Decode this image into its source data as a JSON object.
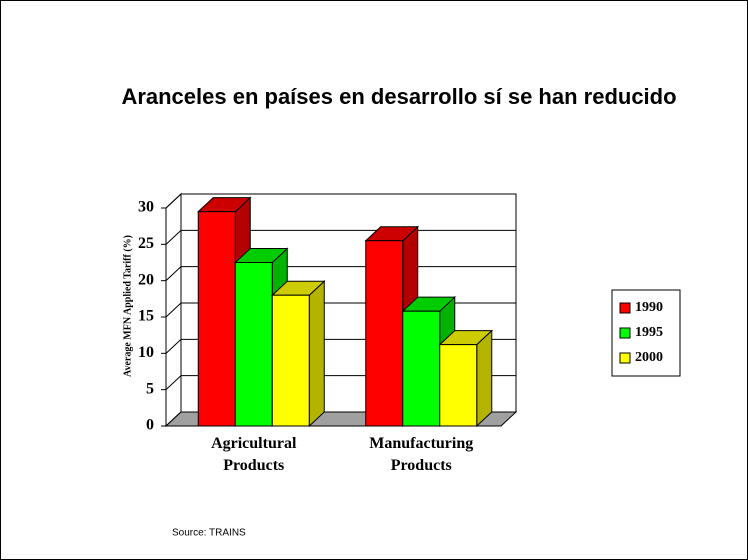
{
  "chart_data": {
    "type": "bar3d",
    "title": "Aranceles en países en desarrollo sí se han reducido",
    "y_label": "Average MFN Applied Tariff (%)",
    "categories": [
      "Agricultural Products",
      "Manufacturing Products"
    ],
    "series": [
      {
        "name": "1990",
        "color": "#ff0000",
        "values": [
          29.5,
          25.5
        ]
      },
      {
        "name": "1995",
        "color": "#00ff00",
        "values": [
          22.5,
          15.8
        ]
      },
      {
        "name": "2000",
        "color": "#ffff00",
        "values": [
          18,
          11.2
        ]
      }
    ],
    "ylim": [
      0,
      30
    ],
    "yticks": [
      0,
      5,
      10,
      15,
      20,
      25,
      30
    ],
    "grid": true,
    "legend": "right",
    "source": "Source: TRAINS"
  }
}
